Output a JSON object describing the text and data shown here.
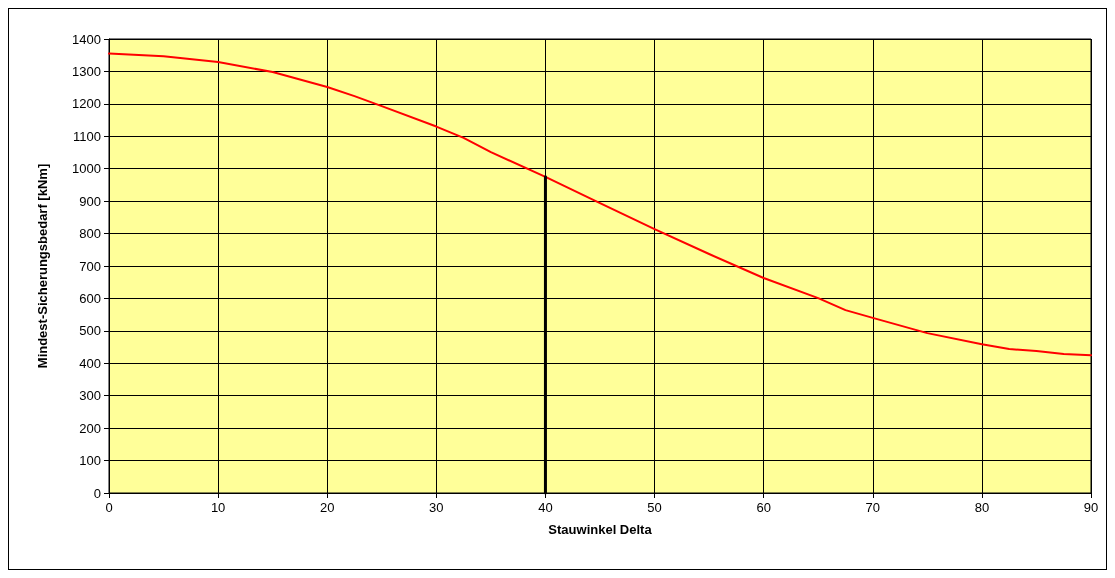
{
  "chart_data": {
    "type": "line",
    "xlabel": "Stauwinkel Delta",
    "ylabel": "Mindest-Sicherungsbedarf [kNm]",
    "xlim": [
      0,
      90
    ],
    "xticks": [
      0,
      10,
      20,
      30,
      40,
      50,
      60,
      70,
      80,
      90
    ],
    "ylim": [
      0,
      1400
    ],
    "yticks": [
      0,
      100,
      200,
      300,
      400,
      500,
      600,
      700,
      800,
      900,
      1000,
      1100,
      1200,
      1300,
      1400
    ],
    "grid": true,
    "marker": "none",
    "line_style": "solid",
    "series": [
      {
        "color": "#ff0000",
        "x": [
          0,
          5,
          10,
          15,
          20,
          22.5,
          25,
          30,
          32.5,
          35,
          40,
          45,
          50,
          55,
          60,
          65,
          67.5,
          70,
          75,
          80,
          82.5,
          85,
          87.5,
          90
        ],
        "values": [
          1355,
          1347,
          1329,
          1298,
          1252,
          1224,
          1193,
          1130,
          1095,
          1051,
          975,
          894,
          814,
          737,
          663,
          601,
          564,
          540,
          493,
          459,
          444,
          438,
          429,
          425
        ]
      },
      {
        "color": "#000000",
        "x": [
          40,
          40
        ],
        "values": [
          0,
          975
        ]
      }
    ]
  }
}
